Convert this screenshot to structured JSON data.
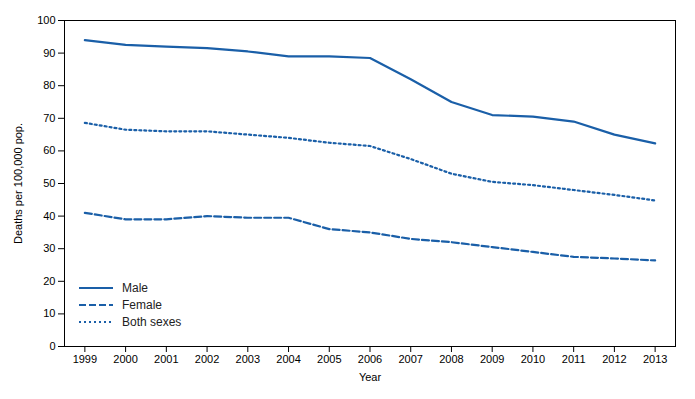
{
  "chart_data": {
    "type": "line",
    "xlabel": "Year",
    "ylabel": "Deaths per 100,000 pop.",
    "x": [
      1999,
      2000,
      2001,
      2002,
      2003,
      2004,
      2005,
      2006,
      2007,
      2008,
      2009,
      2010,
      2011,
      2012,
      2013
    ],
    "series": [
      {
        "name": "Male",
        "color": "#1a5fa8",
        "line_style": "solid",
        "values": [
          94.0,
          92.5,
          92.0,
          91.5,
          90.5,
          89.0,
          89.0,
          88.5,
          82.0,
          75.0,
          71.0,
          70.5,
          69.0,
          65.0,
          62.3
        ]
      },
      {
        "name": "Female",
        "color": "#1a5fa8",
        "line_style": "dashed",
        "values": [
          41.0,
          39.0,
          39.0,
          40.0,
          39.5,
          39.5,
          36.0,
          35.0,
          33.0,
          32.0,
          30.5,
          29.0,
          27.5,
          27.0,
          26.4
        ]
      },
      {
        "name": "Both sexes",
        "color": "#1a5fa8",
        "line_style": "dotted",
        "values": [
          68.6,
          66.5,
          66.0,
          66.0,
          65.0,
          64.0,
          62.5,
          61.5,
          57.5,
          53.0,
          50.5,
          49.5,
          48.0,
          46.5,
          44.8
        ]
      }
    ],
    "xlim": [
      1998.5,
      2013.5
    ],
    "xticks": [
      1999,
      2000,
      2001,
      2002,
      2003,
      2004,
      2005,
      2006,
      2007,
      2008,
      2009,
      2010,
      2011,
      2012,
      2013
    ],
    "ylim": [
      0,
      100
    ],
    "yticks": [
      0,
      10,
      20,
      30,
      40,
      50,
      60,
      70,
      80,
      90,
      100
    ],
    "legend": "lower left",
    "grid": false
  }
}
